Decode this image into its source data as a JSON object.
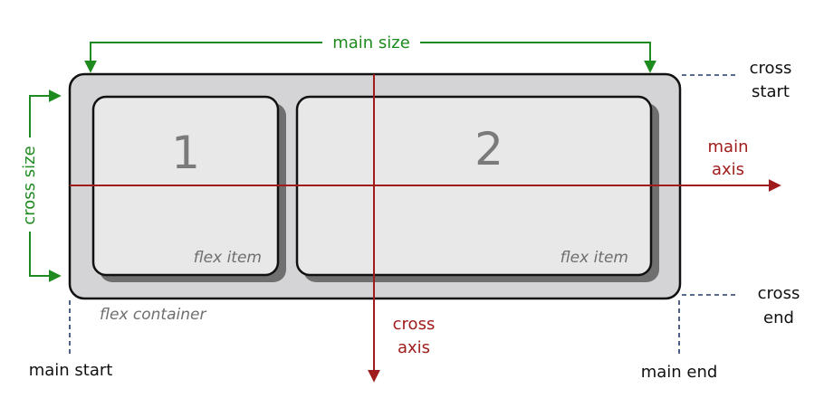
{
  "diagram": {
    "items": [
      {
        "number": "1",
        "label": "flex item"
      },
      {
        "number": "2",
        "label": "flex item"
      }
    ],
    "container_label": "flex container",
    "main_size": "main size",
    "cross_size": "cross size",
    "main_axis": [
      "main",
      "axis"
    ],
    "cross_axis": [
      "cross",
      "axis"
    ],
    "cross_start": [
      "cross",
      "start"
    ],
    "cross_end": [
      "cross",
      "end"
    ],
    "main_start": "main start",
    "main_end": "main end",
    "colors": {
      "green": "#1f8a1f",
      "red": "#a01c1c",
      "navy": "#243a6e",
      "container_fill": "#d4d3d5",
      "item_fill": "#e8e8e8",
      "item_shadow": "#6f6f6f",
      "outline": "#111111"
    }
  }
}
